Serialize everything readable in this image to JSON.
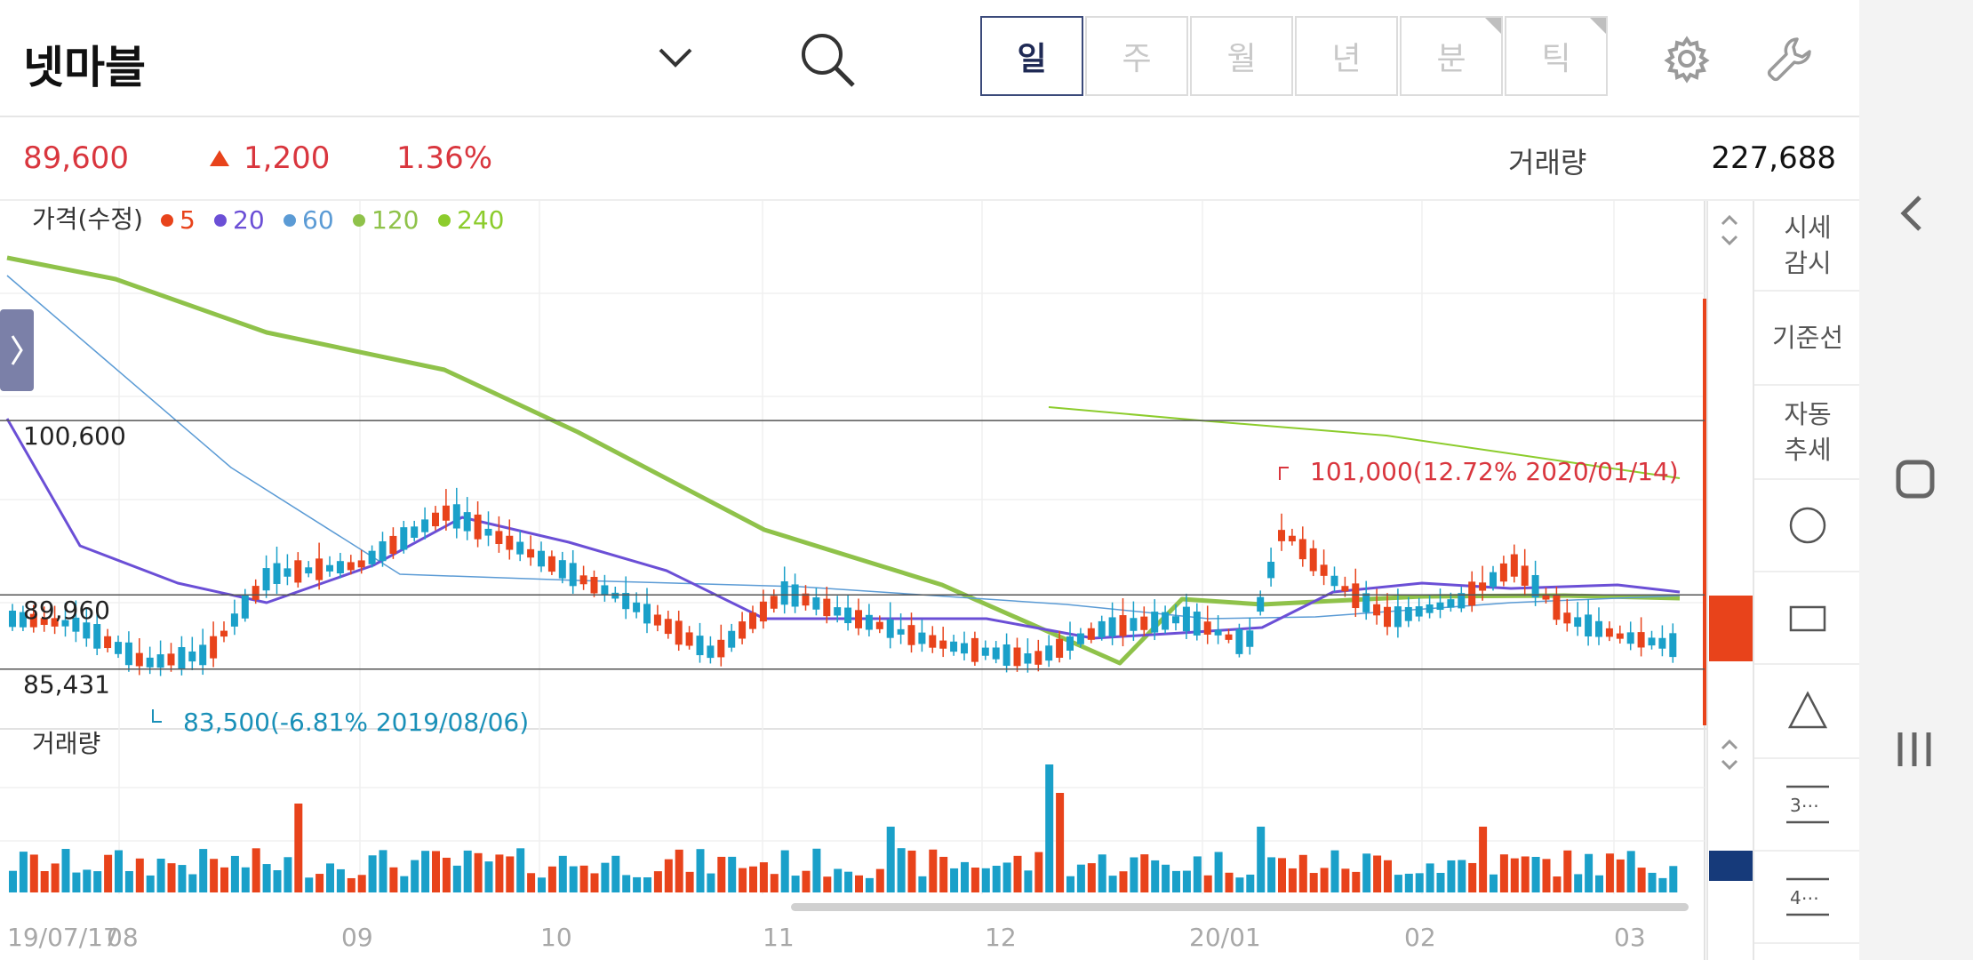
{
  "header": {
    "stock_name": "넷마블",
    "periods": [
      {
        "label": "일",
        "active": true,
        "corner": false
      },
      {
        "label": "주",
        "active": false,
        "corner": false
      },
      {
        "label": "월",
        "active": false,
        "corner": false
      },
      {
        "label": "년",
        "active": false,
        "corner": false
      },
      {
        "label": "분",
        "active": false,
        "corner": true
      },
      {
        "label": "틱",
        "active": false,
        "corner": true
      }
    ],
    "icons": [
      "chevron-down-icon",
      "search-icon",
      "gear-icon",
      "wrench-icon"
    ]
  },
  "quote": {
    "price": "89,600",
    "change": "1,200",
    "change_pct": "1.36%",
    "volume_label": "거래량",
    "volume": "227,688"
  },
  "colors": {
    "up": "#e8431b",
    "down": "#1aa0c9",
    "price_text": "#d9363e",
    "ma5": "#e8431b",
    "ma20": "#6b4fd6",
    "ma60": "#5b9bd5",
    "ma120": "#8fc24a",
    "ma240": "#8ccc2c"
  },
  "chart_legend": {
    "title": "가격(수정)",
    "items": [
      {
        "label": "5",
        "color": "#e8431b"
      },
      {
        "label": "20",
        "color": "#6b4fd6"
      },
      {
        "label": "60",
        "color": "#5b9bd5"
      },
      {
        "label": "120",
        "color": "#8fc24a"
      },
      {
        "label": "240",
        "color": "#8ccc2c"
      }
    ]
  },
  "volume_panel_label": "거래량",
  "tools": [
    {
      "label": "시세\n감시",
      "icon": null
    },
    {
      "label": "기준선",
      "icon": null
    },
    {
      "label": "자동\n추세",
      "icon": null
    },
    {
      "label": "",
      "icon": "circle-icon"
    },
    {
      "label": "",
      "icon": "rectangle-icon"
    },
    {
      "label": "",
      "icon": "triangle-icon"
    },
    {
      "label": "3⋯",
      "icon": "three-lines-icon"
    },
    {
      "label": "4⋯",
      "icon": "four-lines-icon"
    }
  ],
  "chart_data": {
    "type": "candlestick",
    "y_axis_labels": [
      "100,600",
      "89,960",
      "85,431"
    ],
    "reference_lines": [
      100600,
      89960,
      85431
    ],
    "ylim": [
      82000,
      114000
    ],
    "x_tick_labels": [
      "19/07/17",
      "08",
      "09",
      "10",
      "11",
      "12",
      "20/01",
      "02",
      "03",
      "03/"
    ],
    "annotations": [
      {
        "text": "101,000(12.72% 2020/01/14)",
        "value": 101000,
        "kind": "high"
      },
      {
        "text": "83,500(-6.81% 2019/08/06)",
        "value": 83500,
        "kind": "low"
      }
    ],
    "series_note": "daily candles with 5/20/60/120/240 moving averages; volume bars below"
  }
}
